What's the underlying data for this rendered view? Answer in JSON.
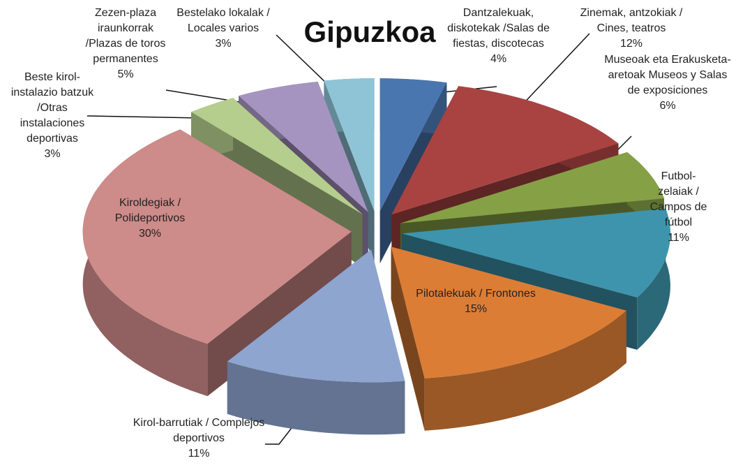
{
  "chart_data": {
    "type": "pie3d",
    "title": "Gipuzkoa",
    "categories": [
      "Dantzalekuak, diskotekak /Salas de fiestas, discotecas",
      "Zinemak, antzokiak / Cines, teatros",
      "Museoak eta Erakusketa-aretoak Museos y Salas de exposiciones",
      "Futbol-zelaiak / Campos de fútbol",
      "Pilotalekuak / Frontones",
      "Kirol-barrutiak / Complejos deportivos",
      "Kiroldegiak / Polideportivos",
      "Beste kirol-instalazio batzuk /Otras instalaciones deportivas",
      "Zezen-plaza iraunkorrak /Plazas de toros permanentes",
      "Bestelako lokalak / Locales varios"
    ],
    "values": [
      4,
      12,
      6,
      11,
      15,
      11,
      30,
      3,
      5,
      3
    ],
    "value_labels": [
      "4%",
      "12%",
      "6%",
      "11%",
      "15%",
      "11%",
      "30%",
      "3%",
      "5%",
      "3%"
    ],
    "colors": [
      "#4a76b0",
      "#a94342",
      "#86a046",
      "#3e94ac",
      "#dc7d36",
      "#8ea5cf",
      "#cd8b89",
      "#b5cd8d",
      "#a594c0",
      "#8fc4d6"
    ]
  }
}
